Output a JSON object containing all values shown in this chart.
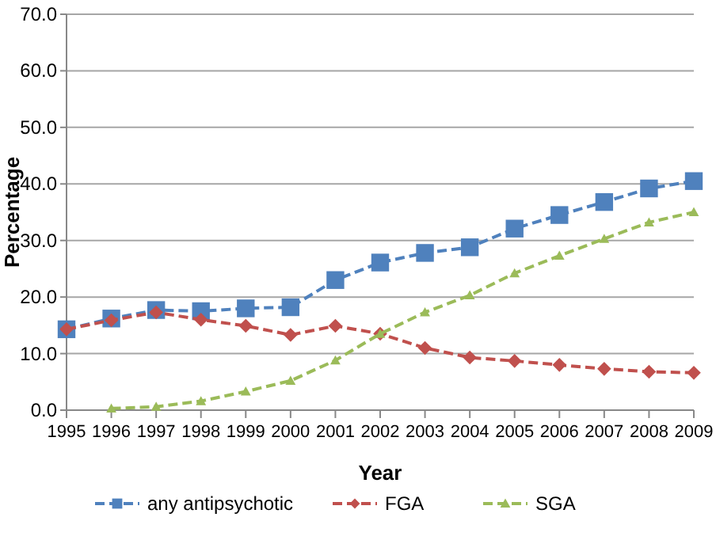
{
  "chart_data": {
    "type": "line",
    "xlabel": "Year",
    "ylabel": "Percentage",
    "x": [
      1995,
      1996,
      1997,
      1998,
      1999,
      2000,
      2001,
      2002,
      2003,
      2004,
      2005,
      2006,
      2007,
      2008,
      2009
    ],
    "xlim": [
      1995,
      2009
    ],
    "xticks": [
      1995,
      1996,
      1997,
      1998,
      1999,
      2000,
      2001,
      2002,
      2003,
      2004,
      2005,
      2006,
      2007,
      2008,
      2009
    ],
    "ylim": [
      0,
      70
    ],
    "yticks": [
      {
        "value": 0,
        "label": "0.0"
      },
      {
        "value": 10,
        "label": "10.0"
      },
      {
        "value": 20,
        "label": "20.0"
      },
      {
        "value": 30,
        "label": "30.0"
      },
      {
        "value": 40,
        "label": "40.0"
      },
      {
        "value": 50,
        "label": "50.0"
      },
      {
        "value": 60,
        "label": "60.0"
      },
      {
        "value": 70,
        "label": "70.0"
      }
    ],
    "grid": "y",
    "legend": "bottom",
    "line_style": "dashed",
    "series": [
      {
        "name": "any antipsychotic",
        "color": "#4f81bd",
        "marker": "square",
        "values": [
          14.3,
          16.2,
          17.7,
          17.5,
          18.0,
          18.2,
          23.0,
          26.1,
          27.8,
          28.8,
          32.1,
          34.5,
          36.8,
          39.2,
          40.5
        ]
      },
      {
        "name": "FGA",
        "color": "#c0504d",
        "marker": "diamond",
        "values": [
          14.3,
          15.9,
          17.3,
          16.0,
          14.9,
          13.3,
          14.9,
          13.5,
          11.0,
          9.3,
          8.7,
          8.0,
          7.3,
          6.8,
          6.6
        ]
      },
      {
        "name": "SGA",
        "color": "#9bbb59",
        "marker": "triangle",
        "values": [
          null,
          0.3,
          0.6,
          1.6,
          3.3,
          5.2,
          8.8,
          13.5,
          17.3,
          20.3,
          24.2,
          27.3,
          30.3,
          33.2,
          35.0
        ]
      }
    ]
  }
}
